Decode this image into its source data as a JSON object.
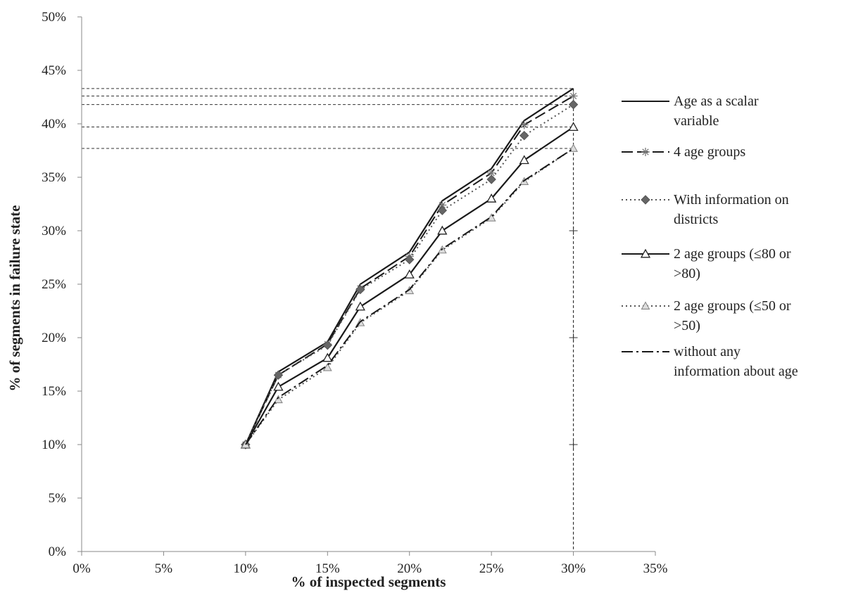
{
  "chart_data": {
    "type": "line",
    "title": "",
    "xlabel": "% of inspected segments",
    "ylabel": "% of segments in failure state",
    "xlim": [
      0,
      35
    ],
    "ylim": [
      0,
      50
    ],
    "x_ticks": [
      "0%",
      "5%",
      "10%",
      "15%",
      "20%",
      "25%",
      "30%",
      "35%"
    ],
    "y_ticks": [
      "0%",
      "5%",
      "10%",
      "15%",
      "20%",
      "25%",
      "30%",
      "35%",
      "40%",
      "45%",
      "50%"
    ],
    "x": [
      10,
      12,
      15,
      17,
      20,
      22,
      25,
      27,
      30
    ],
    "legend_position": "right",
    "series": [
      {
        "name_lines": [
          "Age as a scalar",
          "variable"
        ],
        "values": [
          10.0,
          16.8,
          19.6,
          25.0,
          28.0,
          32.8,
          35.8,
          40.3,
          43.3
        ],
        "color": "#1a1a1a",
        "dash": "",
        "marker": "none"
      },
      {
        "name_lines": [
          "4 age groups"
        ],
        "values": [
          10.0,
          16.5,
          19.4,
          24.6,
          27.6,
          32.4,
          35.4,
          39.9,
          42.6
        ],
        "color": "#1a1a1a",
        "dash": "16,6",
        "marker": "asterisk"
      },
      {
        "name_lines": [
          "With information on",
          "districts"
        ],
        "values": [
          10.0,
          16.5,
          19.3,
          24.5,
          27.3,
          31.9,
          34.8,
          38.9,
          41.8
        ],
        "color": "#555555",
        "dash": "2,4",
        "marker": "diamond"
      },
      {
        "name_lines": [
          "2 age groups  (≤80 or",
          ">80)"
        ],
        "values": [
          10.0,
          15.4,
          18.1,
          22.9,
          25.9,
          30.0,
          33.0,
          36.6,
          39.7
        ],
        "color": "#1a1a1a",
        "dash": "",
        "marker": "triangle-open"
      },
      {
        "name_lines": [
          "2 age groups (≤50 or",
          ">50)"
        ],
        "values": [
          10.0,
          14.2,
          17.2,
          21.4,
          24.4,
          28.2,
          31.2,
          34.6,
          37.7
        ],
        "color": "#555555",
        "dash": "2,4",
        "marker": "triangle-gray"
      },
      {
        "name_lines": [
          "without any",
          "information about age"
        ],
        "values": [
          10.0,
          14.4,
          17.4,
          21.5,
          24.5,
          28.3,
          31.3,
          34.7,
          37.7
        ],
        "color": "#1a1a1a",
        "dash": "16,5,3,5",
        "marker": "none"
      }
    ],
    "reference_lines": {
      "vertical_x": 30,
      "horizontal_y": [
        43.3,
        42.6,
        41.8,
        39.7,
        37.7
      ],
      "vertical_marks_y": [
        10,
        20,
        30
      ]
    }
  }
}
